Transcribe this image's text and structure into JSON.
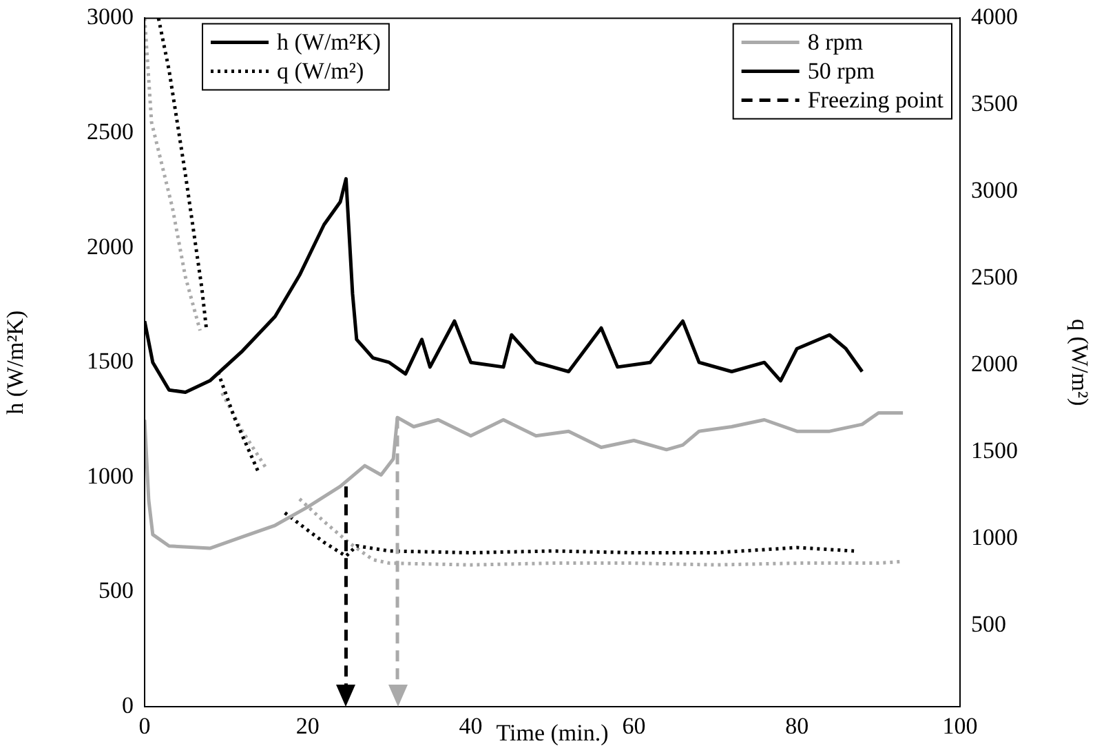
{
  "chart_data": {
    "type": "line",
    "xlabel": "Time (min.)",
    "ylabel": "h (W/m²K)",
    "y2label": "q (W/m²)",
    "xlim": [
      0,
      100
    ],
    "xticks": [
      0,
      20,
      40,
      60,
      80,
      100
    ],
    "ylim": [
      0,
      3000
    ],
    "yticks": [
      0,
      500,
      1000,
      1500,
      2000,
      2500,
      3000
    ],
    "y2lim": [
      33,
      4000
    ],
    "y2ticks": [
      500,
      1000,
      1500,
      2000,
      2500,
      3000,
      3500,
      4000
    ],
    "legend": "top right",
    "grid": false,
    "annotations": [
      "h (W/m²K)",
      "q (W/m²)"
    ],
    "ref_lines": [
      {
        "axis": "x",
        "value": 24.7,
        "label": "Freezing point",
        "color": "#000000",
        "line_style": "dashed"
      },
      {
        "axis": "x",
        "value": 31,
        "color": "#aaaaaa",
        "line_style": "dashed"
      }
    ],
    "series": [
      {
        "name": "8 rpm",
        "color": "#aaaaaa",
        "line_style": "solid",
        "x": [
          0,
          0.5,
          1,
          3,
          8,
          12,
          16,
          20,
          24,
          27,
          29,
          30.5,
          31,
          33,
          36,
          40,
          44,
          48,
          52,
          56,
          60,
          64,
          66,
          68,
          72,
          76,
          80,
          84,
          88,
          90,
          93
        ],
        "values": [
          1250,
          900,
          750,
          700,
          690,
          740,
          790,
          870,
          960,
          1050,
          1010,
          1080,
          1260,
          1220,
          1250,
          1180,
          1250,
          1180,
          1200,
          1130,
          1160,
          1120,
          1140,
          1200,
          1220,
          1250,
          1200,
          1200,
          1230,
          1280,
          1280
        ]
      },
      {
        "name": "50 rpm",
        "color": "#000000",
        "line_style": "solid",
        "x": [
          0,
          1,
          3,
          5,
          8,
          12,
          16,
          19,
          22,
          24,
          24.7,
          25.5,
          26,
          28,
          30,
          32,
          34,
          35,
          38,
          40,
          44,
          45,
          48,
          52,
          56,
          58,
          62,
          66,
          68,
          72,
          76,
          78,
          80,
          84,
          86,
          88
        ],
        "values": [
          1680,
          1500,
          1380,
          1370,
          1420,
          1550,
          1700,
          1880,
          2100,
          2200,
          2300,
          1800,
          1600,
          1520,
          1500,
          1450,
          1600,
          1480,
          1680,
          1500,
          1480,
          1620,
          1500,
          1460,
          1650,
          1480,
          1500,
          1680,
          1500,
          1460,
          1500,
          1420,
          1560,
          1620,
          1560,
          1460
        ]
      },
      {
        "color": "#000000",
        "axis": "y2",
        "line_style": "dotted",
        "x": [
          1.7,
          3,
          5,
          7,
          7.6,
          8.3,
          9,
          11,
          14,
          15.5,
          17.2,
          20,
          22,
          24.7,
          26,
          30,
          40,
          50,
          60,
          70,
          80,
          87
        ],
        "values": [
          4000,
          3700,
          3100,
          2450,
          2200,
          null,
          1960,
          1700,
          1380,
          null,
          1150,
          1050,
          980,
          900,
          960,
          930,
          920,
          930,
          920,
          920,
          950,
          930
        ]
      },
      {
        "color": "#aaaaaa",
        "axis": "y2",
        "line_style": "dotted",
        "x": [
          0,
          0.85,
          3.4,
          5,
          6.8,
          8,
          9.5,
          12,
          15,
          17,
          19,
          22,
          25,
          28,
          30,
          40,
          50,
          60,
          70,
          80,
          90,
          93
        ],
        "values": [
          4000,
          3400,
          2910,
          2510,
          2200,
          null,
          1840,
          1620,
          1400,
          null,
          1230,
          1100,
          980,
          880,
          860,
          850,
          860,
          860,
          850,
          860,
          860,
          870
        ]
      }
    ]
  }
}
